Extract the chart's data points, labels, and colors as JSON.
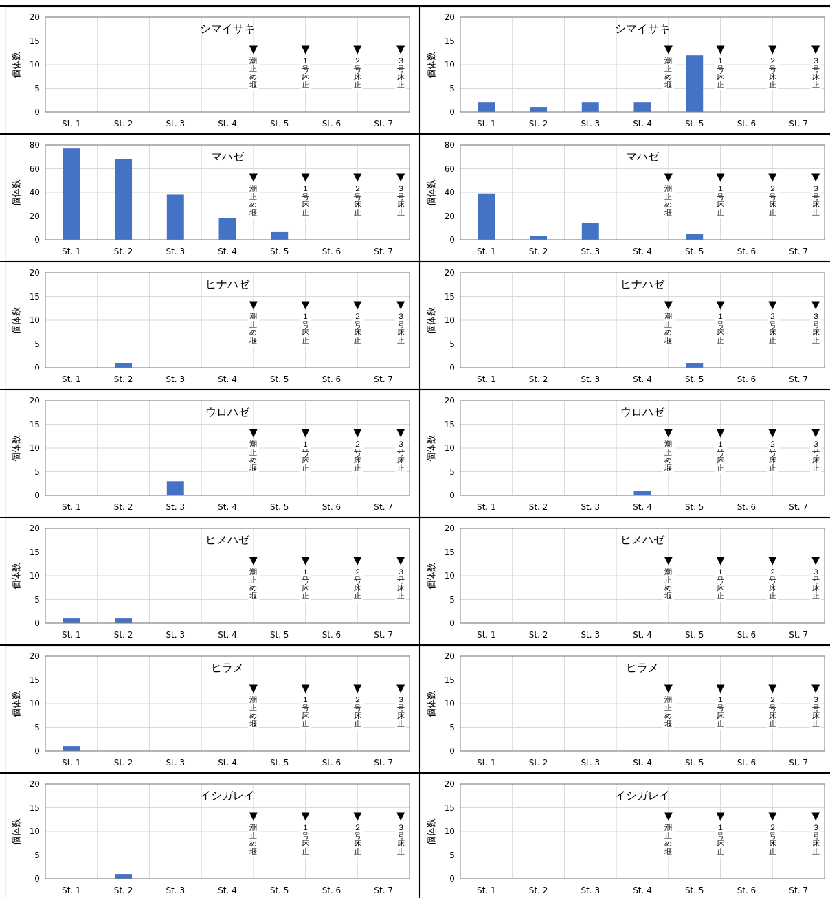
{
  "chart_data": [
    {
      "type": "bar",
      "title": "シマイサキ",
      "ylabel": "個体数",
      "categories": [
        "St. 1",
        "St. 2",
        "St. 3",
        "St. 4",
        "St. 5",
        "St. 6",
        "St. 7"
      ],
      "values": [
        0,
        0,
        0,
        0,
        0,
        0,
        0
      ],
      "color": "#4472c4",
      "ylim": [
        0,
        20
      ],
      "yticks": [
        0,
        5,
        10,
        15,
        20
      ],
      "grid": true,
      "annotations": [
        "潮止め堰",
        "１号床止",
        "２号床止",
        "３号床止"
      ]
    },
    {
      "type": "bar",
      "title": "シマイサキ",
      "ylabel": "個体数",
      "categories": [
        "St. 1",
        "St. 2",
        "St. 3",
        "St. 4",
        "St. 5",
        "St. 6",
        "St. 7"
      ],
      "values": [
        2,
        1,
        2,
        2,
        12,
        0,
        0
      ],
      "color": "#4472c4",
      "ylim": [
        0,
        20
      ],
      "yticks": [
        0,
        5,
        10,
        15,
        20
      ],
      "grid": true,
      "annotations": [
        "潮止め堰",
        "１号床止",
        "２号床止",
        "３号床止"
      ]
    },
    {
      "type": "bar",
      "title": "マハゼ",
      "ylabel": "個体数",
      "categories": [
        "St. 1",
        "St. 2",
        "St. 3",
        "St. 4",
        "St. 5",
        "St. 6",
        "St. 7"
      ],
      "values": [
        77,
        68,
        38,
        18,
        7,
        0,
        0
      ],
      "color": "#4472c4",
      "ylim": [
        0,
        80
      ],
      "yticks": [
        0,
        20,
        40,
        60,
        80
      ],
      "grid": true,
      "annotations": [
        "潮止め堰",
        "１号床止",
        "２号床止",
        "３号床止"
      ]
    },
    {
      "type": "bar",
      "title": "マハゼ",
      "ylabel": "個体数",
      "categories": [
        "St. 1",
        "St. 2",
        "St. 3",
        "St. 4",
        "St. 5",
        "St. 6",
        "St. 7"
      ],
      "values": [
        39,
        3,
        14,
        0,
        5,
        0,
        0
      ],
      "color": "#4472c4",
      "ylim": [
        0,
        80
      ],
      "yticks": [
        0,
        20,
        40,
        60,
        80
      ],
      "grid": true,
      "annotations": [
        "潮止め堰",
        "１号床止",
        "２号床止",
        "３号床止"
      ]
    },
    {
      "type": "bar",
      "title": "ヒナハゼ",
      "ylabel": "個体数",
      "categories": [
        "St. 1",
        "St. 2",
        "St. 3",
        "St. 4",
        "St. 5",
        "St. 6",
        "St. 7"
      ],
      "values": [
        0,
        1,
        0,
        0,
        0,
        0,
        0
      ],
      "color": "#4472c4",
      "ylim": [
        0,
        20
      ],
      "yticks": [
        0,
        5,
        10,
        15,
        20
      ],
      "grid": true,
      "annotations": [
        "潮止め堰",
        "１号床止",
        "２号床止",
        "３号床止"
      ]
    },
    {
      "type": "bar",
      "title": "ヒナハゼ",
      "ylabel": "個体数",
      "categories": [
        "St. 1",
        "St. 2",
        "St. 3",
        "St. 4",
        "St. 5",
        "St. 6",
        "St. 7"
      ],
      "values": [
        0,
        0,
        0,
        0,
        1,
        0,
        0
      ],
      "color": "#4472c4",
      "ylim": [
        0,
        20
      ],
      "yticks": [
        0,
        5,
        10,
        15,
        20
      ],
      "grid": true,
      "annotations": [
        "潮止め堰",
        "１号床止",
        "２号床止",
        "３号床止"
      ]
    },
    {
      "type": "bar",
      "title": "ウロハゼ",
      "ylabel": "個体数",
      "categories": [
        "St. 1",
        "St. 2",
        "St. 3",
        "St. 4",
        "St. 5",
        "St. 6",
        "St. 7"
      ],
      "values": [
        0,
        0,
        3,
        0,
        0,
        0,
        0
      ],
      "color": "#4472c4",
      "ylim": [
        0,
        20
      ],
      "yticks": [
        0,
        5,
        10,
        15,
        20
      ],
      "grid": true,
      "annotations": [
        "潮止め堰",
        "１号床止",
        "２号床止",
        "３号床止"
      ]
    },
    {
      "type": "bar",
      "title": "ウロハゼ",
      "ylabel": "個体数",
      "categories": [
        "St. 1",
        "St. 2",
        "St. 3",
        "St. 4",
        "St. 5",
        "St. 6",
        "St. 7"
      ],
      "values": [
        0,
        0,
        0,
        1,
        0,
        0,
        0
      ],
      "color": "#4472c4",
      "ylim": [
        0,
        20
      ],
      "yticks": [
        0,
        5,
        10,
        15,
        20
      ],
      "grid": true,
      "annotations": [
        "潮止め堰",
        "１号床止",
        "２号床止",
        "３号床止"
      ]
    },
    {
      "type": "bar",
      "title": "ヒメハゼ",
      "ylabel": "個体数",
      "categories": [
        "St. 1",
        "St. 2",
        "St. 3",
        "St. 4",
        "St. 5",
        "St. 6",
        "St. 7"
      ],
      "values": [
        1,
        1,
        0,
        0,
        0,
        0,
        0
      ],
      "color": "#4472c4",
      "ylim": [
        0,
        20
      ],
      "yticks": [
        0,
        5,
        10,
        15,
        20
      ],
      "grid": true,
      "annotations": [
        "潮止め堰",
        "１号床止",
        "２号床止",
        "３号床止"
      ]
    },
    {
      "type": "bar",
      "title": "ヒメハゼ",
      "ylabel": "個体数",
      "categories": [
        "St. 1",
        "St. 2",
        "St. 3",
        "St. 4",
        "St. 5",
        "St. 6",
        "St. 7"
      ],
      "values": [
        0,
        0,
        0,
        0,
        0,
        0,
        0
      ],
      "color": "#4472c4",
      "ylim": [
        0,
        20
      ],
      "yticks": [
        0,
        5,
        10,
        15,
        20
      ],
      "grid": true,
      "annotations": [
        "潮止め堰",
        "１号床止",
        "２号床止",
        "３号床止"
      ]
    },
    {
      "type": "bar",
      "title": "ヒラメ",
      "ylabel": "個体数",
      "categories": [
        "St. 1",
        "St. 2",
        "St. 3",
        "St. 4",
        "St. 5",
        "St. 6",
        "St. 7"
      ],
      "values": [
        1,
        0,
        0,
        0,
        0,
        0,
        0
      ],
      "color": "#4472c4",
      "ylim": [
        0,
        20
      ],
      "yticks": [
        0,
        5,
        10,
        15,
        20
      ],
      "grid": true,
      "annotations": [
        "潮止め堰",
        "１号床止",
        "２号床止",
        "３号床止"
      ]
    },
    {
      "type": "bar",
      "title": "ヒラメ",
      "ylabel": "個体数",
      "categories": [
        "St. 1",
        "St. 2",
        "St. 3",
        "St. 4",
        "St. 5",
        "St. 6",
        "St. 7"
      ],
      "values": [
        0,
        0,
        0,
        0,
        0,
        0,
        0
      ],
      "color": "#4472c4",
      "ylim": [
        0,
        20
      ],
      "yticks": [
        0,
        5,
        10,
        15,
        20
      ],
      "grid": true,
      "annotations": [
        "潮止め堰",
        "１号床止",
        "２号床止",
        "３号床止"
      ]
    },
    {
      "type": "bar",
      "title": "イシガレイ",
      "ylabel": "個体数",
      "categories": [
        "St. 1",
        "St. 2",
        "St. 3",
        "St. 4",
        "St. 5",
        "St. 6",
        "St. 7"
      ],
      "values": [
        0,
        1,
        0,
        0,
        0,
        0,
        0
      ],
      "color": "#4472c4",
      "ylim": [
        0,
        20
      ],
      "yticks": [
        0,
        5,
        10,
        15,
        20
      ],
      "grid": true,
      "annotations": [
        "潮止め堰",
        "１号床止",
        "２号床止",
        "３号床止"
      ]
    },
    {
      "type": "bar",
      "title": "イシガレイ",
      "ylabel": "個体数",
      "categories": [
        "St. 1",
        "St. 2",
        "St. 3",
        "St. 4",
        "St. 5",
        "St. 6",
        "St. 7"
      ],
      "values": [
        0,
        0,
        0,
        0,
        0,
        0,
        0
      ],
      "color": "#4472c4",
      "ylim": [
        0,
        20
      ],
      "yticks": [
        0,
        5,
        10,
        15,
        20
      ],
      "grid": true,
      "annotations": [
        "潮止め堰",
        "１号床止",
        "２号床止",
        "３号床止"
      ]
    }
  ]
}
